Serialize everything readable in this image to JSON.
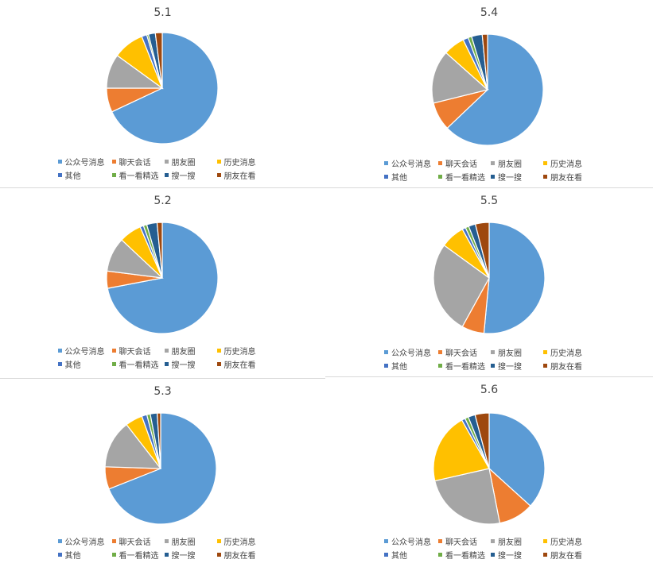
{
  "colors": [
    "#5b9bd5",
    "#ed7d31",
    "#a5a5a5",
    "#ffc000",
    "#4472c4",
    "#70ad47",
    "#255e91",
    "#9e480e"
  ],
  "legend_labels": [
    "公众号消息",
    "聊天会话",
    "朋友圈",
    "历史消息",
    "其他",
    "看一看精选",
    "搜一搜",
    "朋友在看"
  ],
  "chart_data": [
    {
      "type": "pie",
      "title": "5.1",
      "categories": [
        "公众号消息",
        "聊天会话",
        "朋友圈",
        "历史消息",
        "其他",
        "看一看精选",
        "搜一搜",
        "朋友在看"
      ],
      "values": [
        68,
        7,
        10,
        9,
        1.5,
        0.5,
        2,
        2
      ]
    },
    {
      "type": "pie",
      "title": "5.4",
      "categories": [
        "公众号消息",
        "聊天会话",
        "朋友圈",
        "历史消息",
        "其他",
        "看一看精选",
        "搜一搜",
        "朋友在看"
      ],
      "values": [
        61,
        8,
        15,
        6,
        1.5,
        1,
        3,
        1.5
      ]
    },
    {
      "type": "pie",
      "title": "5.2",
      "categories": [
        "公众号消息",
        "聊天会话",
        "朋友圈",
        "历史消息",
        "其他",
        "看一看精选",
        "搜一搜",
        "朋友在看"
      ],
      "values": [
        72,
        5,
        10,
        6.5,
        1,
        1,
        3,
        1.5
      ]
    },
    {
      "type": "pie",
      "title": "5.5",
      "categories": [
        "公众号消息",
        "聊天会话",
        "朋友圈",
        "历史消息",
        "其他",
        "看一看精选",
        "搜一搜",
        "朋友在看"
      ],
      "values": [
        51.5,
        6.5,
        27,
        7,
        1,
        1,
        2,
        4
      ]
    },
    {
      "type": "pie",
      "title": "5.3",
      "categories": [
        "公众号消息",
        "聊天会话",
        "朋友圈",
        "历史消息",
        "其他",
        "看一看精选",
        "搜一搜",
        "朋友在看"
      ],
      "values": [
        69,
        6.5,
        14,
        5,
        1.5,
        1,
        2,
        1
      ]
    },
    {
      "type": "pie",
      "title": "5.6",
      "categories": [
        "公众号消息",
        "聊天会话",
        "朋友圈",
        "历史消息",
        "其他",
        "看一看精选",
        "搜一搜",
        "朋友在看"
      ],
      "values": [
        36,
        10,
        24,
        20,
        1,
        1,
        2,
        4
      ]
    }
  ]
}
